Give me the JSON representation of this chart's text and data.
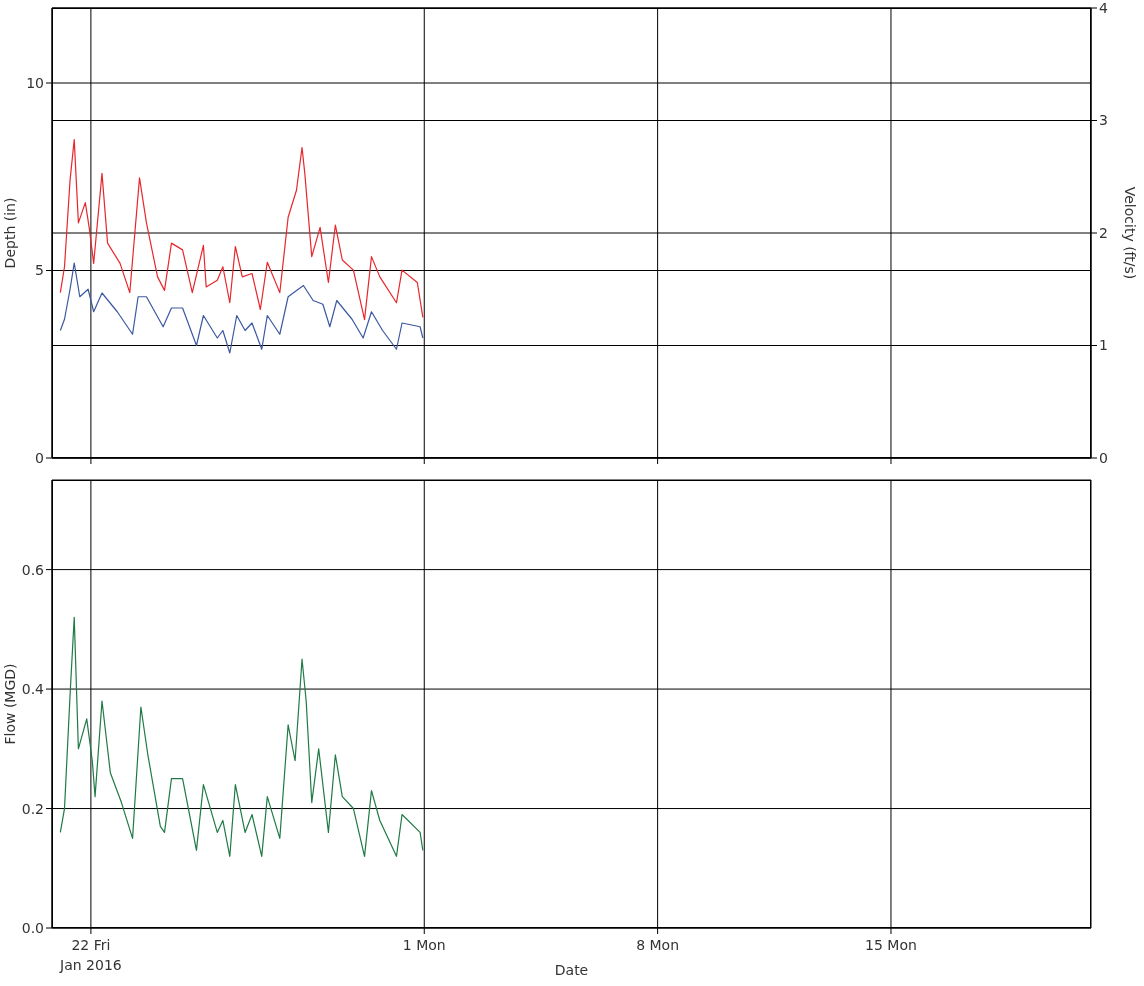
{
  "chart_data": [
    {
      "type": "line",
      "ylabel": "Depth (in)",
      "y2label": "Velocity (ft/s)",
      "xlim": [
        "2016-01-20T20:00",
        "2016-02-21T00:00"
      ],
      "xticks": [
        {
          "value": "2016-01-22T00:00",
          "label": null
        },
        {
          "value": "2016-02-01T00:00",
          "label": null
        },
        {
          "value": "2016-02-08T00:00",
          "label": null
        },
        {
          "value": "2016-02-15T00:00",
          "label": null
        }
      ],
      "ylim": [
        0,
        12
      ],
      "yticks": [
        0,
        5,
        10
      ],
      "y2lim": [
        0,
        4
      ],
      "y2ticks": [
        0,
        1,
        2,
        3,
        4
      ],
      "grid": true,
      "tick_labels": "y",
      "series": [
        {
          "color": "#3b58a0",
          "x": [
            "2016-01-21T02:00",
            "2016-01-21T05:00",
            "2016-01-21T09:00",
            "2016-01-21T12:00",
            "2016-01-21T16:00",
            "2016-01-21T22:00",
            "2016-01-22T02:00",
            "2016-01-22T08:00",
            "2016-01-22T19:00",
            "2016-01-23T06:00",
            "2016-01-23T10:00",
            "2016-01-23T16:00",
            "2016-01-24T04:00",
            "2016-01-24T10:00",
            "2016-01-24T18:00",
            "2016-01-25T04:00",
            "2016-01-25T09:00",
            "2016-01-25T19:00",
            "2016-01-25T23:00",
            "2016-01-26T04:00",
            "2016-01-26T09:00",
            "2016-01-26T15:00",
            "2016-01-26T20:00",
            "2016-01-27T03:00",
            "2016-01-27T07:00",
            "2016-01-27T16:00",
            "2016-01-27T22:00",
            "2016-01-28T09:00",
            "2016-01-28T16:00",
            "2016-01-28T23:00",
            "2016-01-29T04:00",
            "2016-01-29T09:00",
            "2016-01-29T20:00",
            "2016-01-30T04:00",
            "2016-01-30T10:00",
            "2016-01-30T18:00",
            "2016-01-31T04:00",
            "2016-01-31T08:00",
            "2016-01-31T21:00",
            "2016-01-31T23:00"
          ],
          "values": [
            3.4,
            3.7,
            4.5,
            5.2,
            4.3,
            4.5,
            3.9,
            4.4,
            3.9,
            3.3,
            4.3,
            4.3,
            3.5,
            4.0,
            4.0,
            3.0,
            3.8,
            3.2,
            3.4,
            2.8,
            3.8,
            3.4,
            3.6,
            2.9,
            3.8,
            3.3,
            4.3,
            4.6,
            4.2,
            4.1,
            3.5,
            4.2,
            3.7,
            3.2,
            3.9,
            3.4,
            2.9,
            3.6,
            3.5,
            3.2
          ]
        },
        {
          "color": "#e8262b",
          "axis": "y2",
          "x": [
            "2016-01-21T02:00",
            "2016-01-21T05:00",
            "2016-01-21T09:00",
            "2016-01-21T12:00",
            "2016-01-21T15:00",
            "2016-01-21T20:00",
            "2016-01-21T23:00",
            "2016-01-22T02:00",
            "2016-01-22T08:00",
            "2016-01-22T12:00",
            "2016-01-22T21:00",
            "2016-01-23T04:00",
            "2016-01-23T11:00",
            "2016-01-23T16:00",
            "2016-01-24T00:00",
            "2016-01-24T05:00",
            "2016-01-24T10:00",
            "2016-01-24T18:00",
            "2016-01-25T01:00",
            "2016-01-25T09:00",
            "2016-01-25T11:00",
            "2016-01-25T19:00",
            "2016-01-25T23:00",
            "2016-01-26T04:00",
            "2016-01-26T08:00",
            "2016-01-26T13:00",
            "2016-01-26T20:00",
            "2016-01-27T02:00",
            "2016-01-27T07:00",
            "2016-01-27T16:00",
            "2016-01-27T22:00",
            "2016-01-28T04:00",
            "2016-01-28T08:00",
            "2016-01-28T10:00",
            "2016-01-28T15:00",
            "2016-01-28T21:00",
            "2016-01-29T03:00",
            "2016-01-29T08:00",
            "2016-01-29T13:00",
            "2016-01-29T21:00",
            "2016-01-30T05:00",
            "2016-01-30T10:00",
            "2016-01-30T16:00",
            "2016-01-31T04:00",
            "2016-01-31T08:00",
            "2016-01-31T19:00",
            "2016-01-31T23:00"
          ],
          "values": [
            1.47,
            1.7,
            2.47,
            2.83,
            2.09,
            2.27,
            2.03,
            1.73,
            2.53,
            1.91,
            1.73,
            1.47,
            2.49,
            2.09,
            1.61,
            1.49,
            1.91,
            1.85,
            1.47,
            1.89,
            1.52,
            1.58,
            1.7,
            1.38,
            1.88,
            1.61,
            1.64,
            1.32,
            1.74,
            1.47,
            2.14,
            2.38,
            2.76,
            2.53,
            1.79,
            2.05,
            1.56,
            2.07,
            1.76,
            1.67,
            1.23,
            1.79,
            1.61,
            1.38,
            1.67,
            1.56,
            1.25
          ]
        }
      ]
    },
    {
      "type": "line",
      "ylabel": "Flow (MGD)",
      "xlabel": "Date",
      "xlim": [
        "2016-01-20T20:00",
        "2016-02-21T00:00"
      ],
      "xticks": [
        {
          "value": "2016-01-22T00:00",
          "label": "22 Fri\nJan 2016"
        },
        {
          "value": "2016-02-01T00:00",
          "label": "1 Mon"
        },
        {
          "value": "2016-02-08T00:00",
          "label": "8 Mon"
        },
        {
          "value": "2016-02-15T00:00",
          "label": "15 Mon"
        }
      ],
      "ylim": [
        0,
        0.75
      ],
      "yticks": [
        {
          "value": 0,
          "label": "0.0"
        },
        0.2,
        0.4,
        0.6
      ],
      "grid": true,
      "series": [
        {
          "color": "#1f7a46",
          "x": [
            "2016-01-21T02:00",
            "2016-01-21T05:00",
            "2016-01-21T09:00",
            "2016-01-21T12:00",
            "2016-01-21T15:00",
            "2016-01-21T21:00",
            "2016-01-22T01:00",
            "2016-01-22T03:00",
            "2016-01-22T08:00",
            "2016-01-22T14:00",
            "2016-01-22T22:00",
            "2016-01-23T06:00",
            "2016-01-23T12:00",
            "2016-01-23T17:00",
            "2016-01-24T02:00",
            "2016-01-24T05:00",
            "2016-01-24T10:00",
            "2016-01-24T18:00",
            "2016-01-25T04:00",
            "2016-01-25T09:00",
            "2016-01-25T19:00",
            "2016-01-25T23:00",
            "2016-01-26T04:00",
            "2016-01-26T08:00",
            "2016-01-26T15:00",
            "2016-01-26T20:00",
            "2016-01-27T03:00",
            "2016-01-27T07:00",
            "2016-01-27T16:00",
            "2016-01-27T22:00",
            "2016-01-28T03:00",
            "2016-01-28T08:00",
            "2016-01-28T11:00",
            "2016-01-28T15:00",
            "2016-01-28T20:00",
            "2016-01-29T03:00",
            "2016-01-29T08:00",
            "2016-01-29T13:00",
            "2016-01-29T21:00",
            "2016-01-30T05:00",
            "2016-01-30T10:00",
            "2016-01-30T16:00",
            "2016-01-31T04:00",
            "2016-01-31T08:00",
            "2016-01-31T21:00",
            "2016-01-31T23:00"
          ],
          "values": [
            0.16,
            0.2,
            0.39,
            0.52,
            0.3,
            0.35,
            0.28,
            0.22,
            0.38,
            0.26,
            0.21,
            0.15,
            0.37,
            0.29,
            0.17,
            0.16,
            0.25,
            0.25,
            0.13,
            0.24,
            0.16,
            0.18,
            0.12,
            0.24,
            0.16,
            0.19,
            0.12,
            0.22,
            0.15,
            0.34,
            0.28,
            0.45,
            0.38,
            0.21,
            0.3,
            0.16,
            0.29,
            0.22,
            0.2,
            0.12,
            0.23,
            0.18,
            0.12,
            0.19,
            0.16,
            0.13
          ]
        }
      ]
    }
  ]
}
